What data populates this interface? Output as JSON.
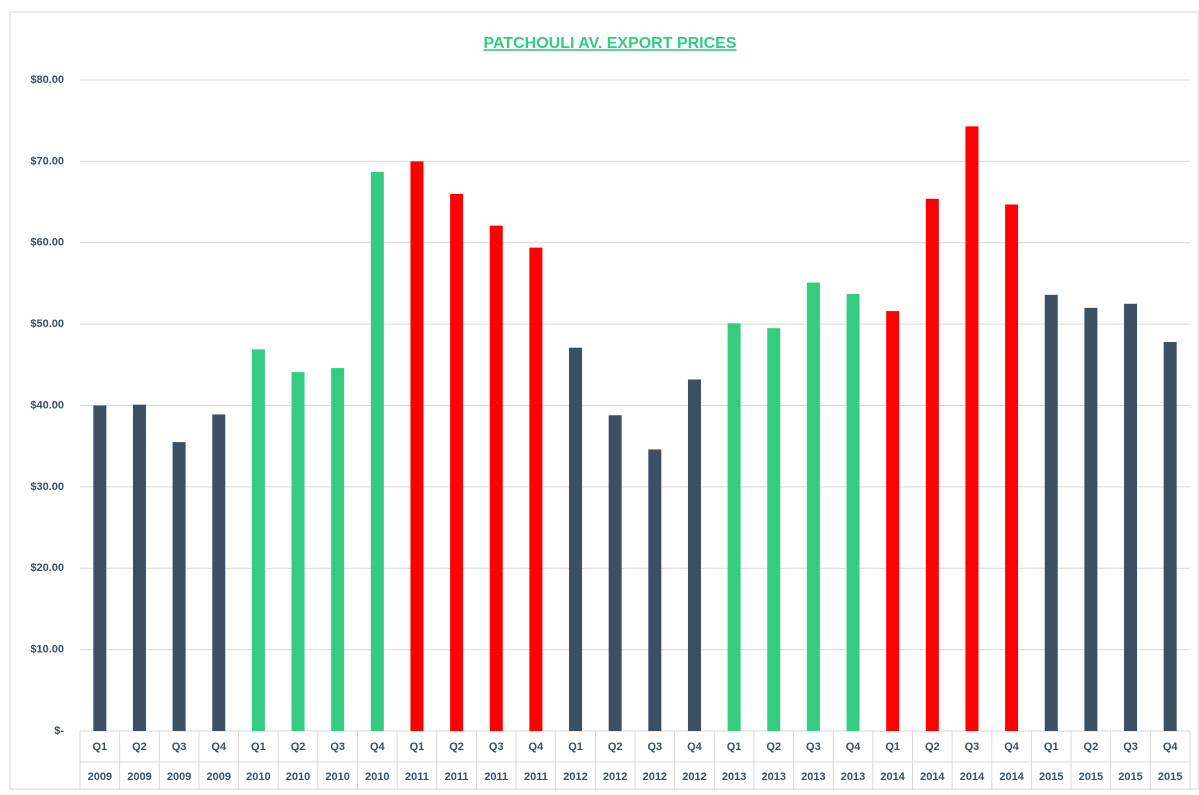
{
  "chart_data": {
    "type": "bar",
    "title": "PATCHOULI AV. EXPORT PRICES",
    "categories": [
      [
        "Q1",
        "2009"
      ],
      [
        "Q2",
        "2009"
      ],
      [
        "Q3",
        "2009"
      ],
      [
        "Q4",
        "2009"
      ],
      [
        "Q1",
        "2010"
      ],
      [
        "Q2",
        "2010"
      ],
      [
        "Q3",
        "2010"
      ],
      [
        "Q4",
        "2010"
      ],
      [
        "Q1",
        "2011"
      ],
      [
        "Q2",
        "2011"
      ],
      [
        "Q3",
        "2011"
      ],
      [
        "Q4",
        "2011"
      ],
      [
        "Q1",
        "2012"
      ],
      [
        "Q2",
        "2012"
      ],
      [
        "Q3",
        "2012"
      ],
      [
        "Q4",
        "2012"
      ],
      [
        "Q1",
        "2013"
      ],
      [
        "Q2",
        "2013"
      ],
      [
        "Q3",
        "2013"
      ],
      [
        "Q4",
        "2013"
      ],
      [
        "Q1",
        "2014"
      ],
      [
        "Q2",
        "2014"
      ],
      [
        "Q3",
        "2014"
      ],
      [
        "Q4",
        "2014"
      ],
      [
        "Q1",
        "2015"
      ],
      [
        "Q2",
        "2015"
      ],
      [
        "Q3",
        "2015"
      ],
      [
        "Q4",
        "2015"
      ]
    ],
    "values": [
      40.0,
      40.1,
      35.5,
      38.9,
      46.9,
      44.1,
      44.6,
      68.7,
      70.0,
      66.0,
      62.1,
      59.4,
      47.1,
      38.8,
      34.6,
      43.2,
      50.1,
      49.5,
      55.1,
      53.7,
      51.6,
      65.4,
      74.3,
      64.7,
      53.6,
      52.0,
      52.5,
      47.8
    ],
    "colors": [
      "#3d4f63",
      "#3d4f63",
      "#3d4f63",
      "#3d4f63",
      "#33cc80",
      "#33cc80",
      "#33cc80",
      "#33cc80",
      "#ff0000",
      "#ff0000",
      "#ff0000",
      "#ff0000",
      "#3d4f63",
      "#3d4f63",
      "#3d4f63",
      "#3d4f63",
      "#33cc80",
      "#33cc80",
      "#33cc80",
      "#33cc80",
      "#ff0000",
      "#ff0000",
      "#ff0000",
      "#ff0000",
      "#3d4f63",
      "#3d4f63",
      "#3d4f63",
      "#3d4f63"
    ],
    "title_color": "#33cc80",
    "ylim": [
      0,
      80
    ],
    "yticks": [
      {
        "value": 0,
        "label": "$-"
      },
      {
        "value": 10,
        "label": "$10.00"
      },
      {
        "value": 20,
        "label": "$20.00"
      },
      {
        "value": 30,
        "label": "$30.00"
      },
      {
        "value": 40,
        "label": "$40.00"
      },
      {
        "value": 50,
        "label": "$50.00"
      },
      {
        "value": 60,
        "label": "$60.00"
      },
      {
        "value": 70,
        "label": "$70.00"
      },
      {
        "value": 80,
        "label": "$80.00"
      }
    ],
    "grid": true
  }
}
